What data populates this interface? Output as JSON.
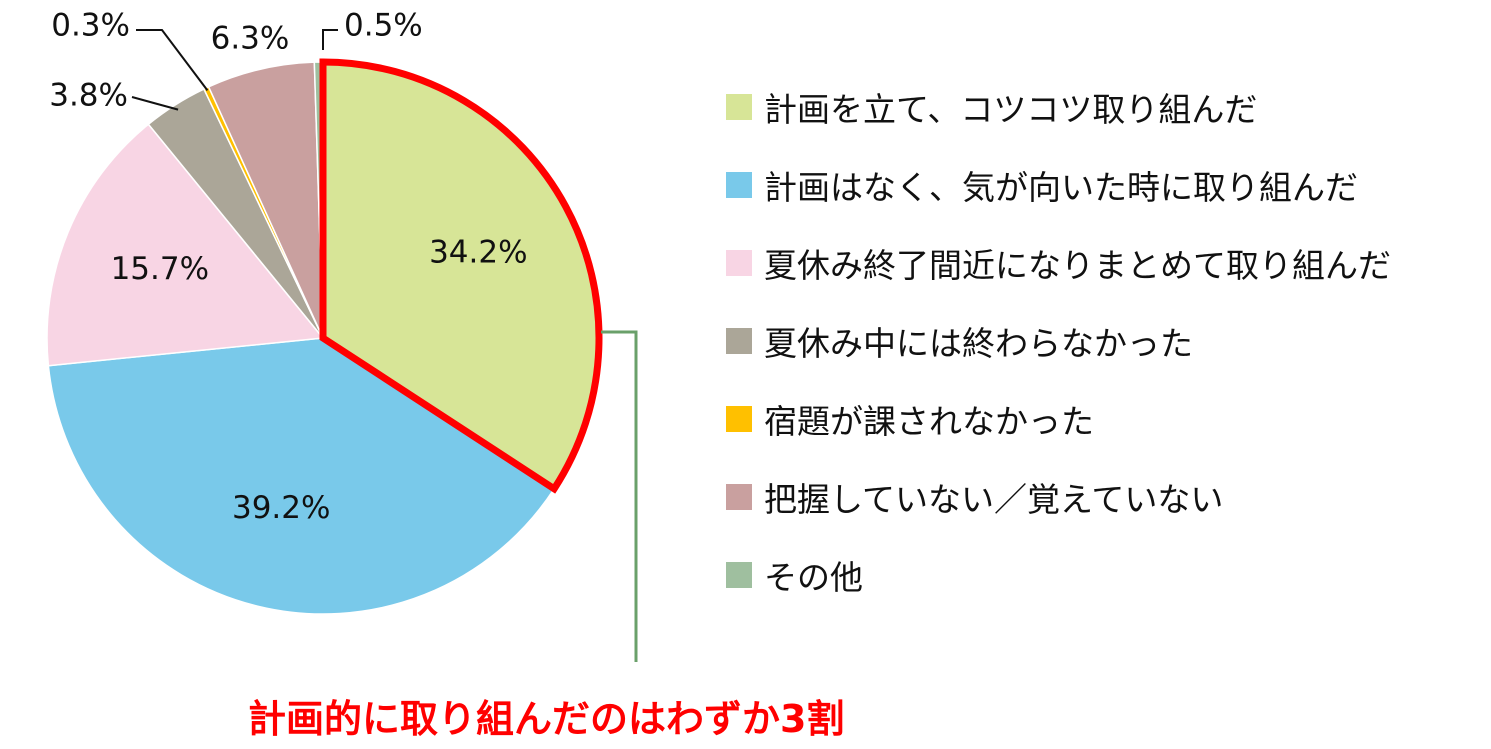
{
  "chart_data": {
    "type": "pie",
    "slices": [
      {
        "name": "計画を立て、コツコツ取り組んだ",
        "value": 34.2,
        "label": "34.2%",
        "color": "#d7e597",
        "highlight": true
      },
      {
        "name": "計画はなく、気が向いた時に取り組んだ",
        "value": 39.2,
        "label": "39.2%",
        "color": "#79c9ea"
      },
      {
        "name": "夏休み終了間近になりまとめて取り組んだ",
        "value": 15.7,
        "label": "15.7%",
        "color": "#f8d5e4"
      },
      {
        "name": "夏休み中には終わらなかった",
        "value": 3.8,
        "label": "3.8%",
        "color": "#aba698"
      },
      {
        "name": "宿題が課されなかった",
        "value": 0.3,
        "label": "0.3%",
        "color": "#ffc000"
      },
      {
        "name": "把握していない／覚えていない",
        "value": 6.3,
        "label": "6.3%",
        "color": "#c9a09f"
      },
      {
        "name": "その他",
        "value": 0.5,
        "label": "0.5%",
        "color": "#9fbf9f"
      }
    ],
    "legend_position": "right",
    "highlight_color": "#ff0000",
    "callout_text": "計画的に取り組んだのはわずか3割",
    "callout_line_color": "#6aa06a"
  }
}
